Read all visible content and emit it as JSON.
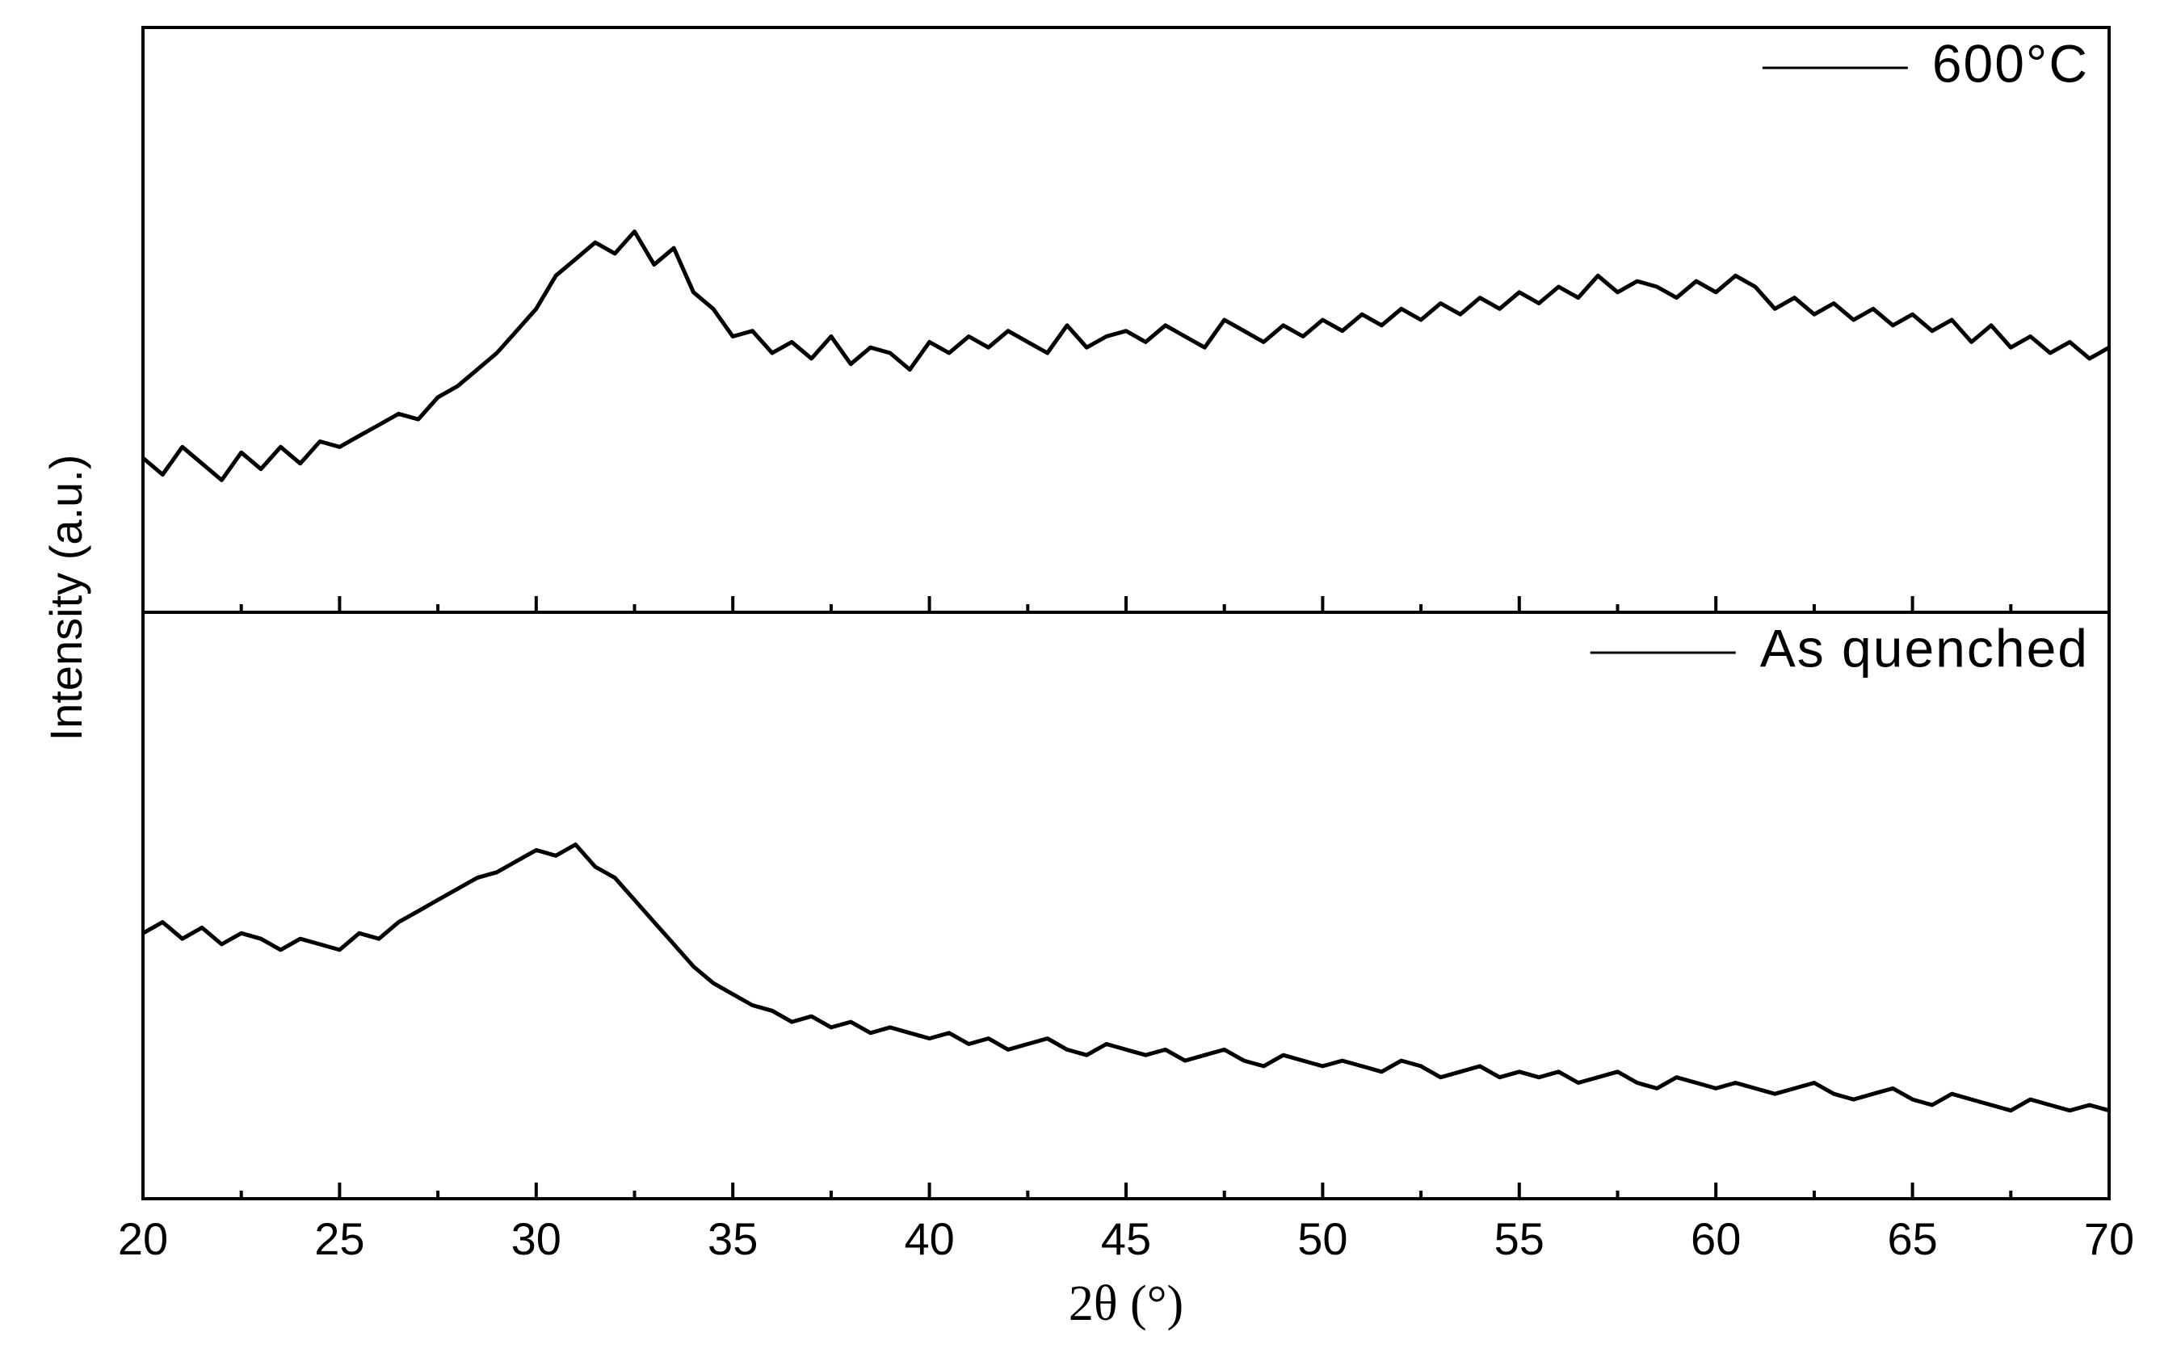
{
  "chart_data": [
    {
      "type": "line",
      "legend": "upper right",
      "xlim": [
        20,
        70
      ],
      "ylim": [
        0,
        100
      ],
      "xticks": [
        20,
        25,
        30,
        35,
        40,
        45,
        50,
        55,
        60,
        65,
        70
      ],
      "xminorticks": [
        22.5,
        27.5,
        32.5,
        37.5,
        42.5,
        47.5,
        52.5,
        57.5,
        62.5,
        67.5
      ],
      "x": [
        20,
        20.5,
        21,
        21.5,
        22,
        22.5,
        23,
        23.5,
        24,
        24.5,
        25,
        25.5,
        26,
        26.5,
        27,
        27.5,
        28,
        28.5,
        29,
        29.5,
        30,
        30.5,
        31,
        31.5,
        32,
        32.5,
        33,
        33.5,
        34,
        34.5,
        35,
        35.5,
        36,
        36.5,
        37,
        37.5,
        38,
        38.5,
        39,
        39.5,
        40,
        40.5,
        41,
        41.5,
        42,
        42.5,
        43,
        43.5,
        44,
        44.5,
        45,
        45.5,
        46,
        46.5,
        47,
        47.5,
        48,
        48.5,
        49,
        49.5,
        50,
        50.5,
        51,
        51.5,
        52,
        52.5,
        53,
        53.5,
        54,
        54.5,
        55,
        55.5,
        56,
        56.5,
        57,
        57.5,
        58,
        58.5,
        59,
        59.5,
        60,
        60.5,
        61,
        61.5,
        62,
        62.5,
        63,
        63.5,
        64,
        64.5,
        65,
        65.5,
        66,
        66.5,
        67,
        67.5,
        68,
        68.5,
        69,
        69.5,
        70
      ],
      "series": [
        {
          "name": "600°C",
          "color": "#000000",
          "values": [
            25,
            22,
            27,
            24,
            21,
            26,
            23,
            27,
            24,
            28,
            27,
            29,
            31,
            33,
            32,
            36,
            38,
            41,
            44,
            48,
            52,
            58,
            61,
            64,
            62,
            66,
            60,
            63,
            55,
            52,
            47,
            48,
            44,
            46,
            43,
            47,
            42,
            45,
            44,
            41,
            46,
            44,
            47,
            45,
            48,
            46,
            44,
            49,
            45,
            47,
            48,
            46,
            49,
            47,
            45,
            50,
            48,
            46,
            49,
            47,
            50,
            48,
            51,
            49,
            52,
            50,
            53,
            51,
            54,
            52,
            55,
            53,
            56,
            54,
            58,
            55,
            57,
            56,
            54,
            57,
            55,
            58,
            56,
            52,
            54,
            51,
            53,
            50,
            52,
            49,
            51,
            48,
            50,
            46,
            49,
            45,
            47,
            44,
            46,
            43,
            45
          ]
        }
      ]
    },
    {
      "type": "line",
      "legend": "upper right",
      "xlim": [
        20,
        70
      ],
      "ylim": [
        0,
        100
      ],
      "xlabel": "2θ (°)",
      "ylabel": "Intensity (a.u.)",
      "xticks": [
        20,
        25,
        30,
        35,
        40,
        45,
        50,
        55,
        60,
        65,
        70
      ],
      "xminorticks": [
        22.5,
        27.5,
        32.5,
        37.5,
        42.5,
        47.5,
        52.5,
        57.5,
        62.5,
        67.5
      ],
      "x": [
        20,
        20.5,
        21,
        21.5,
        22,
        22.5,
        23,
        23.5,
        24,
        24.5,
        25,
        25.5,
        26,
        26.5,
        27,
        27.5,
        28,
        28.5,
        29,
        29.5,
        30,
        30.5,
        31,
        31.5,
        32,
        32.5,
        33,
        33.5,
        34,
        34.5,
        35,
        35.5,
        36,
        36.5,
        37,
        37.5,
        38,
        38.5,
        39,
        39.5,
        40,
        40.5,
        41,
        41.5,
        42,
        42.5,
        43,
        43.5,
        44,
        44.5,
        45,
        45.5,
        46,
        46.5,
        47,
        47.5,
        48,
        48.5,
        49,
        49.5,
        50,
        50.5,
        51,
        51.5,
        52,
        52.5,
        53,
        53.5,
        54,
        54.5,
        55,
        55.5,
        56,
        56.5,
        57,
        57.5,
        58,
        58.5,
        59,
        59.5,
        60,
        60.5,
        61,
        61.5,
        62,
        62.5,
        63,
        63.5,
        64,
        64.5,
        65,
        65.5,
        66,
        66.5,
        67,
        67.5,
        68,
        68.5,
        69,
        69.5,
        70
      ],
      "series": [
        {
          "name": "As quenched",
          "color": "#000000",
          "values": [
            45,
            47,
            44,
            46,
            43,
            45,
            44,
            42,
            44,
            43,
            42,
            45,
            44,
            47,
            49,
            51,
            53,
            55,
            56,
            58,
            60,
            59,
            61,
            57,
            55,
            51,
            47,
            43,
            39,
            36,
            34,
            32,
            31,
            29,
            30,
            28,
            29,
            27,
            28,
            27,
            26,
            27,
            25,
            26,
            24,
            25,
            26,
            24,
            23,
            25,
            24,
            23,
            24,
            22,
            23,
            24,
            22,
            21,
            23,
            22,
            21,
            22,
            21,
            20,
            22,
            21,
            19,
            20,
            21,
            19,
            20,
            19,
            20,
            18,
            19,
            20,
            18,
            17,
            19,
            18,
            17,
            18,
            17,
            16,
            17,
            18,
            16,
            15,
            16,
            17,
            15,
            14,
            16,
            15,
            14,
            13,
            15,
            14,
            13,
            14,
            13
          ]
        }
      ]
    }
  ]
}
